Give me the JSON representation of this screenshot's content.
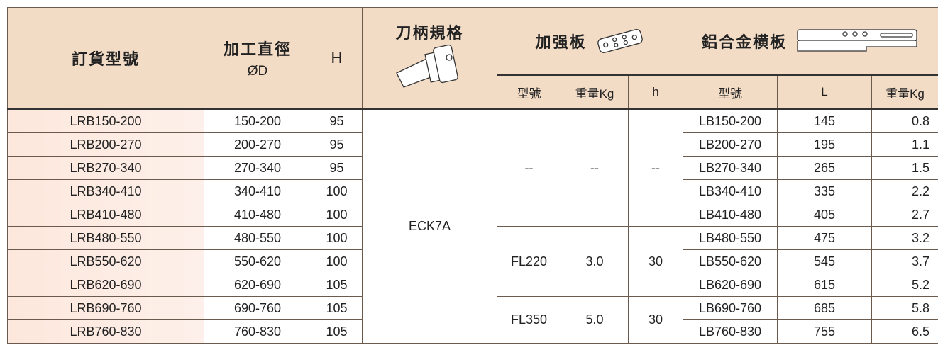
{
  "header": {
    "order_no": "訂貨型號",
    "diameter": "加工直徑",
    "diameter_unit": "ØD",
    "h": "H",
    "holder": "刀柄規格",
    "plate": "加强板",
    "plate_cols": [
      "型號",
      "重量Kg",
      "h"
    ],
    "crossbar": "鋁合金横板",
    "crossbar_cols": [
      "型號",
      "L",
      "重量Kg"
    ]
  },
  "holder_spec": "ECK7A",
  "plate_groups": [
    {
      "model": "--",
      "weight": "--",
      "h": "--"
    },
    {
      "model": "FL220",
      "weight": "3.0",
      "h": "30"
    },
    {
      "model": "FL350",
      "weight": "5.0",
      "h": "30"
    }
  ],
  "table": {
    "rows": [
      [
        "LRB150-200",
        "150-200",
        "95",
        "LB150-200",
        "145",
        "0.8"
      ],
      [
        "LRB200-270",
        "200-270",
        "95",
        "LB200-270",
        "195",
        "1.1"
      ],
      [
        "LRB270-340",
        "270-340",
        "95",
        "LB270-340",
        "265",
        "1.5"
      ],
      [
        "LRB340-410",
        "340-410",
        "100",
        "LB340-410",
        "335",
        "2.2"
      ],
      [
        "LRB410-480",
        "410-480",
        "100",
        "LB410-480",
        "405",
        "2.7"
      ],
      [
        "LRB480-550",
        "480-550",
        "100",
        "LB480-550",
        "475",
        "3.2"
      ],
      [
        "LRB550-620",
        "550-620",
        "100",
        "LB550-620",
        "545",
        "3.7"
      ],
      [
        "LRB620-690",
        "620-690",
        "105",
        "LB620-690",
        "615",
        "5.2"
      ],
      [
        "LRB690-760",
        "690-760",
        "105",
        "LB690-760",
        "685",
        "5.8"
      ],
      [
        "LRB760-830",
        "760-830",
        "105",
        "LB760-830",
        "755",
        "6.5"
      ]
    ]
  }
}
